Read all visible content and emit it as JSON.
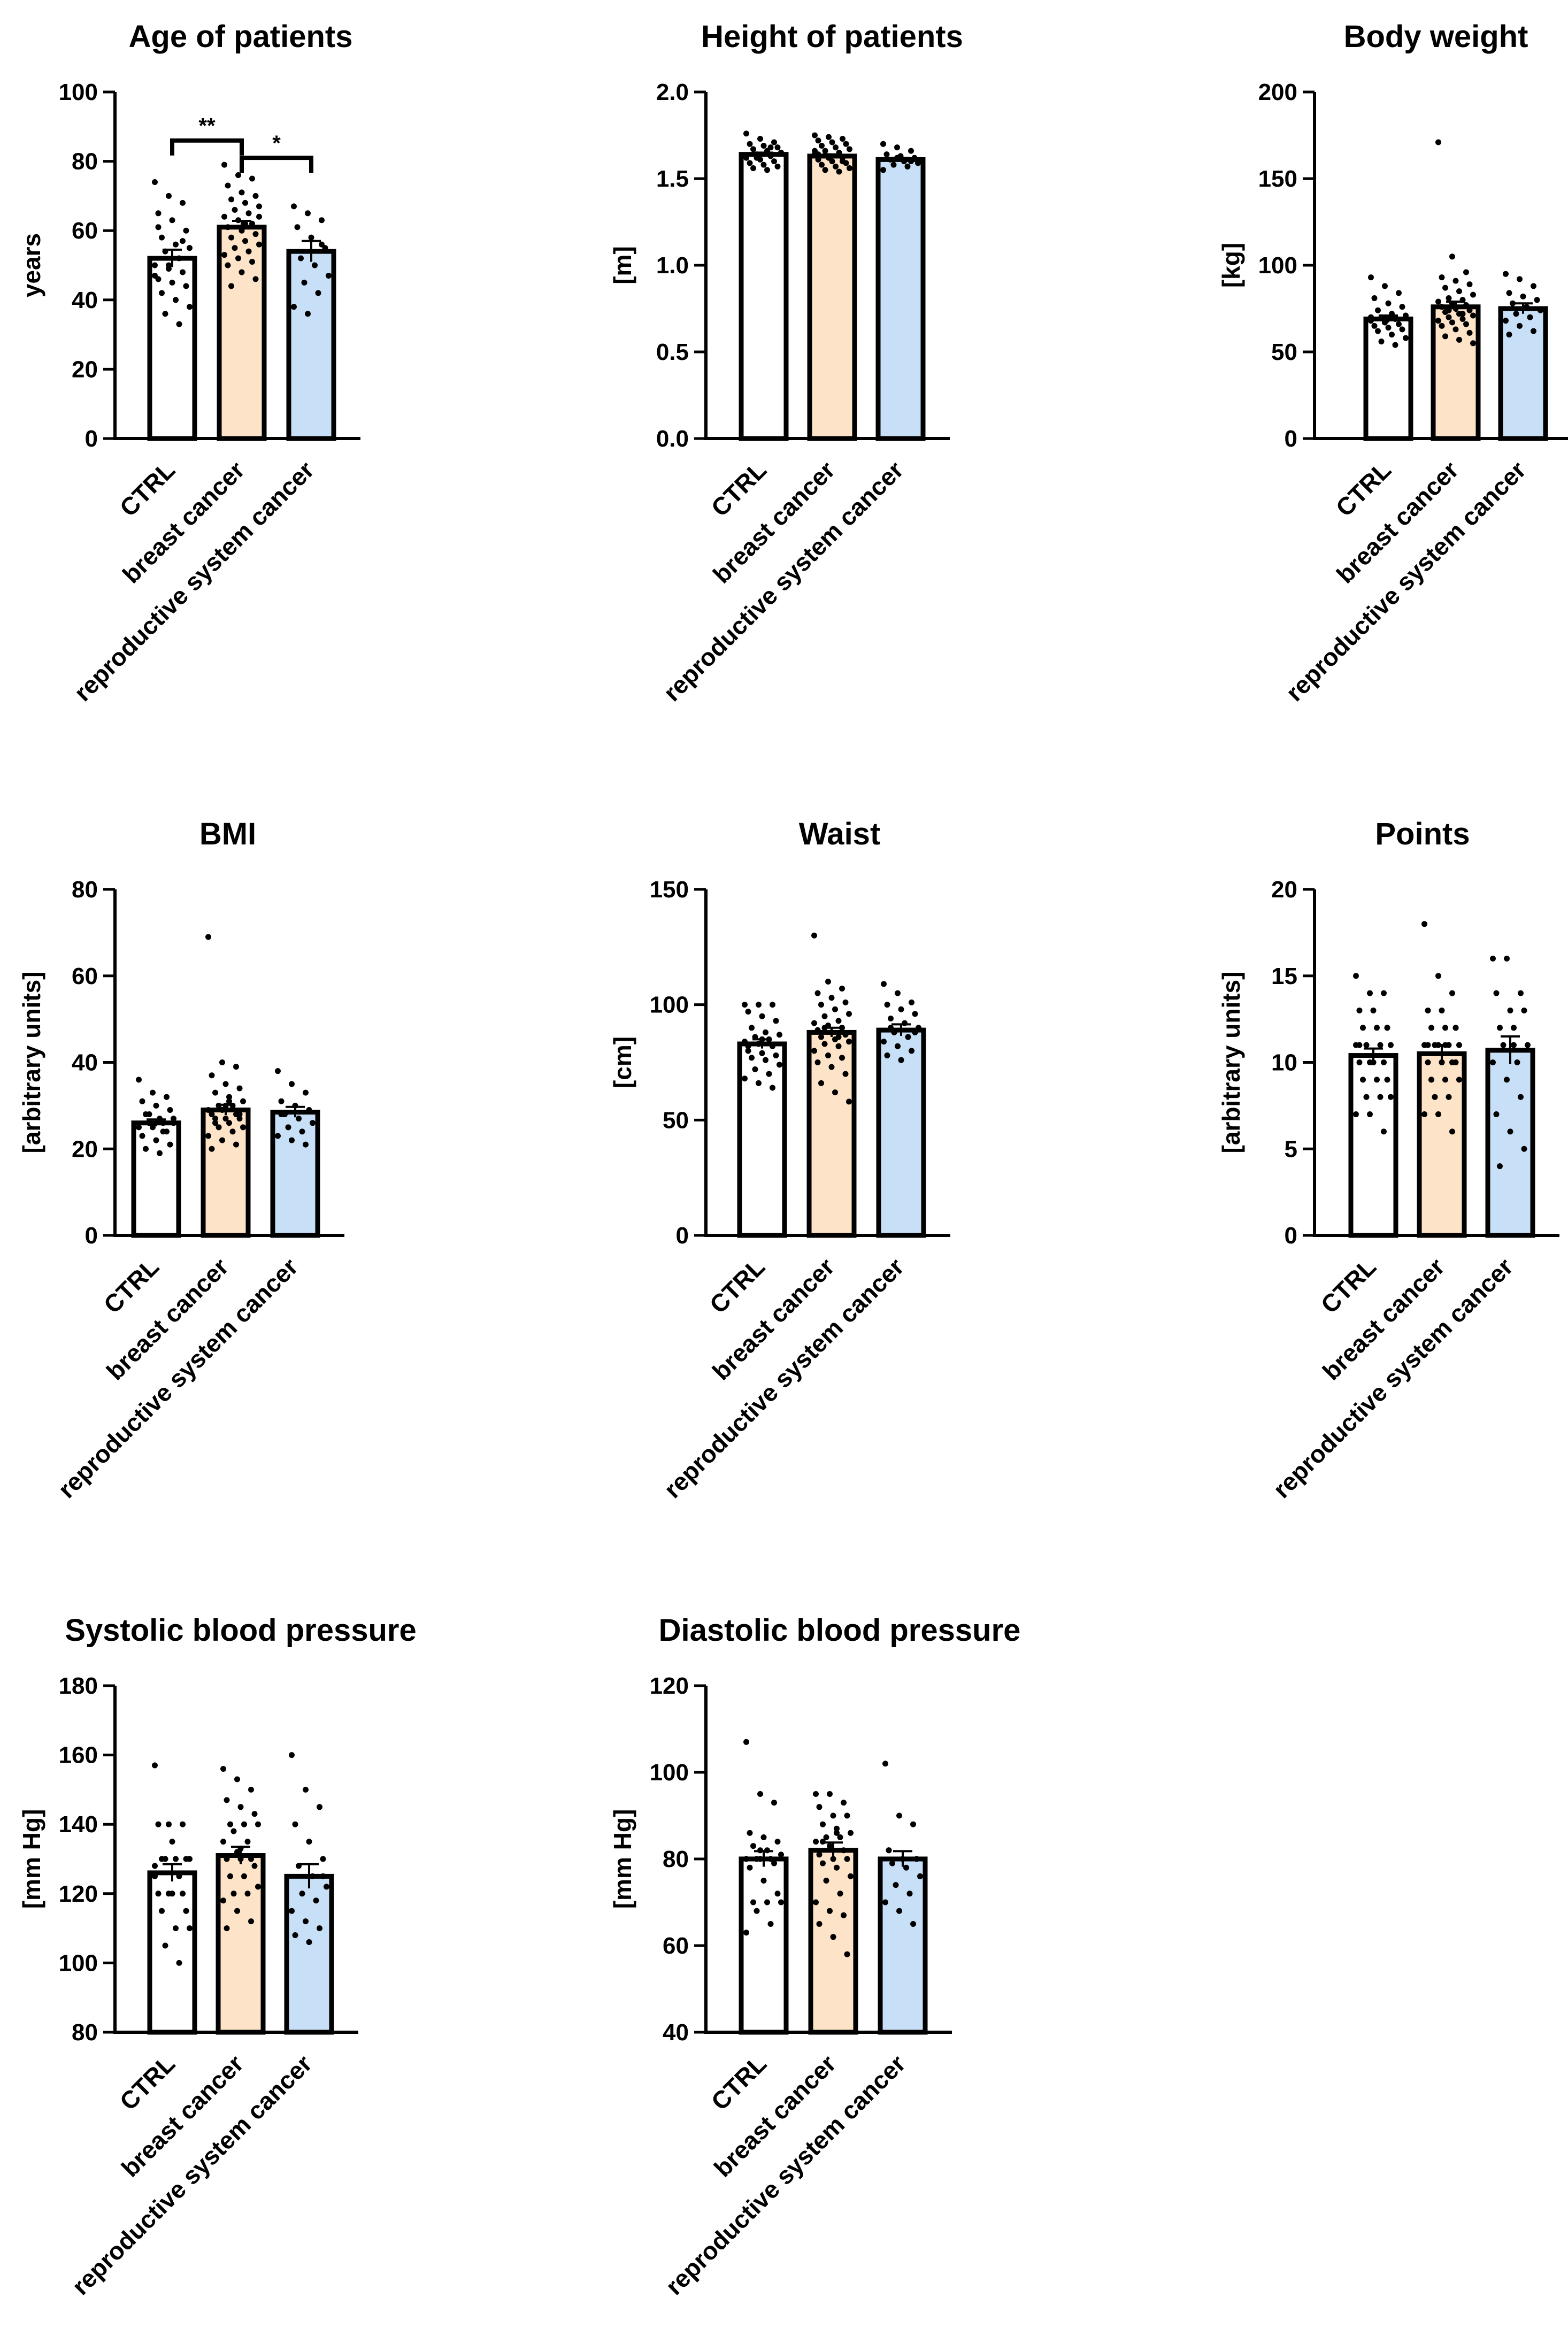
{
  "chart_data": [
    {
      "type": "bar",
      "title": "Age of patients",
      "ylabel": "years",
      "ylim": [
        0,
        100
      ],
      "yticks": [
        0,
        20,
        40,
        60,
        80,
        100
      ],
      "categories": [
        "CTRL",
        "breast cancer",
        "reproductive system cancer"
      ],
      "means": [
        52,
        61,
        54
      ],
      "sem": [
        2.5,
        1.8,
        3
      ],
      "points": [
        [
          74,
          70,
          68,
          65,
          63,
          60,
          58,
          56,
          55,
          54,
          52,
          50,
          50,
          48,
          46,
          45,
          44,
          42,
          40,
          38,
          36,
          33,
          47,
          49,
          57,
          61
        ],
        [
          79,
          76,
          75,
          73,
          71,
          70,
          69,
          68,
          67,
          66,
          65,
          64,
          63,
          62,
          61,
          60,
          59,
          58,
          57,
          56,
          55,
          54,
          53,
          52,
          51,
          50,
          48,
          46,
          44,
          62,
          64
        ],
        [
          67,
          65,
          63,
          61,
          58,
          55,
          52,
          50,
          47,
          45,
          42,
          38,
          36,
          56
        ]
      ],
      "significance": [
        {
          "from": 0,
          "to": 1,
          "label": "**",
          "y": 86
        },
        {
          "from": 1,
          "to": 2,
          "label": "*",
          "y": 81
        }
      ]
    },
    {
      "type": "bar",
      "title": "Height of patients",
      "ylabel": "[m]",
      "ylim": [
        0,
        2
      ],
      "yticks": [
        0,
        0.5,
        1,
        1.5,
        2
      ],
      "ytick_labels": [
        "0.0",
        "0.5",
        "1.0",
        "1.5",
        "2.0"
      ],
      "categories": [
        "CTRL",
        "breast cancer",
        "reproductive system cancer"
      ],
      "means": [
        1.64,
        1.63,
        1.61
      ],
      "sem": [
        0.01,
        0.01,
        0.01
      ],
      "points": [
        [
          1.76,
          1.73,
          1.71,
          1.7,
          1.69,
          1.68,
          1.67,
          1.66,
          1.65,
          1.64,
          1.63,
          1.62,
          1.61,
          1.6,
          1.59,
          1.58,
          1.57,
          1.56,
          1.55,
          1.65,
          1.62,
          1.68
        ],
        [
          1.75,
          1.74,
          1.73,
          1.72,
          1.71,
          1.7,
          1.69,
          1.68,
          1.67,
          1.66,
          1.65,
          1.64,
          1.63,
          1.62,
          1.61,
          1.6,
          1.59,
          1.58,
          1.57,
          1.56,
          1.55,
          1.54,
          1.66,
          1.62,
          1.6,
          1.64
        ],
        [
          1.7,
          1.68,
          1.66,
          1.64,
          1.63,
          1.62,
          1.61,
          1.6,
          1.59,
          1.58,
          1.57,
          1.55,
          1.62,
          1.6
        ]
      ]
    },
    {
      "type": "bar",
      "title": "Body weight",
      "ylabel": "[kg]",
      "ylim": [
        0,
        200
      ],
      "yticks": [
        0,
        50,
        100,
        150,
        200
      ],
      "categories": [
        "CTRL",
        "breast cancer",
        "reproductive system cancer"
      ],
      "means": [
        69,
        76,
        75
      ],
      "sem": [
        2,
        3,
        3
      ],
      "points": [
        [
          93,
          88,
          84,
          81,
          78,
          76,
          74,
          72,
          71,
          70,
          69,
          68,
          67,
          66,
          65,
          64,
          63,
          62,
          60,
          58,
          56,
          54,
          70,
          67
        ],
        [
          171,
          105,
          96,
          93,
          91,
          89,
          87,
          85,
          83,
          81,
          80,
          79,
          78,
          77,
          76,
          75,
          74,
          73,
          72,
          71,
          70,
          69,
          68,
          67,
          66,
          65,
          63,
          61,
          59,
          57,
          55,
          74,
          72
        ],
        [
          95,
          92,
          88,
          84,
          82,
          80,
          78,
          76,
          74,
          72,
          70,
          68,
          65,
          62,
          60
        ]
      ]
    },
    {
      "type": "bar",
      "title": "BMI",
      "ylabel": "[arbitrary units]",
      "ylim": [
        0,
        80
      ],
      "yticks": [
        0,
        20,
        40,
        60,
        80
      ],
      "categories": [
        "CTRL",
        "breast cancer",
        "reproductive system cancer"
      ],
      "means": [
        26,
        29,
        28.5
      ],
      "sem": [
        0.8,
        1.2,
        1.2
      ],
      "points": [
        [
          36,
          33,
          32,
          31,
          30,
          29,
          28,
          27,
          27,
          26,
          26,
          25,
          25,
          24,
          23,
          22,
          21,
          20,
          19,
          26,
          28,
          24
        ],
        [
          69,
          40,
          39,
          37,
          35,
          34,
          33,
          32,
          31,
          30,
          30,
          29,
          29,
          28,
          28,
          27,
          27,
          26,
          26,
          25,
          25,
          24,
          23,
          22,
          21,
          20,
          30,
          28,
          27,
          31
        ],
        [
          38,
          35,
          33,
          31,
          30,
          29,
          28,
          27,
          26,
          25,
          24,
          23,
          22,
          21,
          28
        ]
      ]
    },
    {
      "type": "bar",
      "title": "Waist",
      "ylabel": "[cm]",
      "ylim": [
        0,
        150
      ],
      "yticks": [
        0,
        50,
        100,
        150
      ],
      "categories": [
        "CTRL",
        "breast cancer",
        "reproductive system cancer"
      ],
      "means": [
        83,
        88,
        89
      ],
      "sem": [
        2,
        2,
        2.5
      ],
      "points": [
        [
          100,
          100,
          100,
          97,
          95,
          93,
          90,
          88,
          87,
          86,
          85,
          84,
          83,
          82,
          80,
          79,
          78,
          77,
          76,
          74,
          72,
          70,
          68,
          66,
          64,
          82,
          85
        ],
        [
          130,
          110,
          107,
          105,
          103,
          101,
          100,
          98,
          96,
          95,
          93,
          92,
          91,
          90,
          89,
          88,
          87,
          86,
          85,
          84,
          83,
          82,
          80,
          78,
          77,
          75,
          73,
          70,
          66,
          62,
          58,
          90,
          86
        ],
        [
          109,
          105,
          101,
          100,
          98,
          96,
          94,
          92,
          90,
          88,
          86,
          84,
          82,
          80,
          78,
          76,
          88,
          90
        ]
      ]
    },
    {
      "type": "bar",
      "title": "Points",
      "ylabel": "[arbitrary units]",
      "ylim": [
        0,
        20
      ],
      "yticks": [
        0,
        5,
        10,
        15,
        20
      ],
      "categories": [
        "CTRL",
        "breast cancer",
        "reproductive system cancer"
      ],
      "means": [
        10.4,
        10.5,
        10.7
      ],
      "sem": [
        0.4,
        0.5,
        0.8
      ],
      "points": [
        [
          15,
          14,
          14,
          13,
          13,
          12,
          12,
          12,
          11,
          11,
          11,
          11,
          10,
          10,
          10,
          10,
          9,
          9,
          9,
          8,
          8,
          8,
          7,
          7,
          6,
          11,
          10,
          12
        ],
        [
          18,
          15,
          14,
          13,
          13,
          12,
          12,
          12,
          11,
          11,
          11,
          11,
          11,
          10,
          10,
          10,
          10,
          9,
          9,
          9,
          8,
          8,
          7,
          7,
          6,
          11,
          10,
          12,
          9,
          11
        ],
        [
          16,
          16,
          14,
          14,
          13,
          13,
          12,
          12,
          11,
          11,
          10,
          10,
          9,
          8,
          7,
          6,
          5,
          4,
          11
        ]
      ]
    },
    {
      "type": "bar",
      "title": "Systolic blood pressure",
      "ylabel": "[mm Hg]",
      "ylim": [
        80,
        180
      ],
      "yticks": [
        80,
        100,
        120,
        140,
        160,
        180
      ],
      "categories": [
        "CTRL",
        "breast cancer",
        "reproductive system cancer"
      ],
      "means": [
        126,
        131,
        125
      ],
      "sem": [
        2.5,
        2.5,
        3.5
      ],
      "points": [
        [
          157,
          140,
          140,
          140,
          135,
          130,
          130,
          130,
          130,
          130,
          125,
          125,
          120,
          120,
          120,
          120,
          115,
          115,
          110,
          110,
          105,
          100,
          128
        ],
        [
          156,
          153,
          150,
          147,
          145,
          143,
          140,
          140,
          140,
          138,
          135,
          135,
          132,
          130,
          130,
          130,
          128,
          125,
          125,
          122,
          120,
          120,
          118,
          115,
          112,
          110,
          133
        ],
        [
          160,
          150,
          145,
          140,
          135,
          130,
          128,
          125,
          122,
          120,
          118,
          115,
          112,
          110,
          108,
          106,
          125
        ]
      ]
    },
    {
      "type": "bar",
      "title": "Diastolic blood pressure",
      "ylabel": "[mm Hg]",
      "ylim": [
        40,
        120
      ],
      "yticks": [
        40,
        60,
        80,
        100,
        120
      ],
      "categories": [
        "CTRL",
        "breast cancer",
        "reproductive system cancer"
      ],
      "means": [
        80,
        82,
        80
      ],
      "sem": [
        1.8,
        1.8,
        1.8
      ],
      "points": [
        [
          107,
          95,
          93,
          86,
          85,
          84,
          83,
          82,
          81,
          80,
          80,
          80,
          80,
          79,
          78,
          75,
          72,
          70,
          70,
          70,
          68,
          65,
          63,
          82
        ],
        [
          95,
          95,
          93,
          92,
          90,
          90,
          88,
          87,
          86,
          85,
          85,
          84,
          83,
          82,
          81,
          80,
          80,
          79,
          78,
          76,
          75,
          72,
          70,
          68,
          67,
          65,
          62,
          58,
          84,
          86
        ],
        [
          102,
          90,
          88,
          82,
          80,
          80,
          79,
          78,
          76,
          74,
          72,
          70,
          68,
          65,
          82
        ]
      ]
    }
  ]
}
